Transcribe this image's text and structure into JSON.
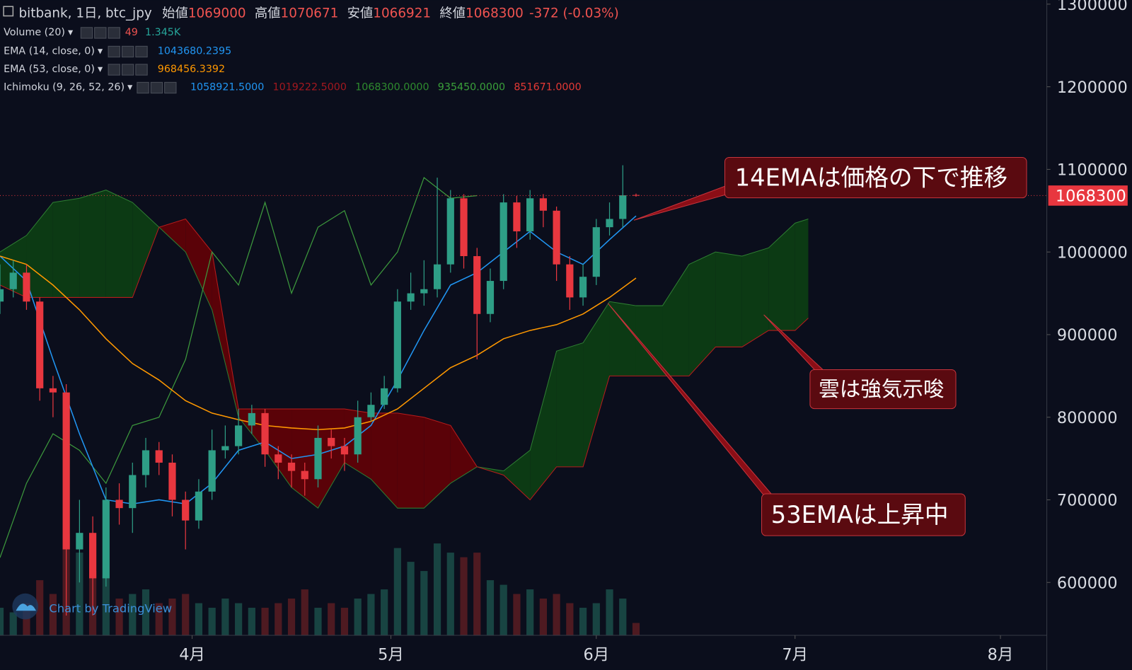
{
  "chart_data": {
    "type": "candlestick",
    "header": {
      "symbol": "bitbank, 1日, btc_jpy",
      "ohlc_labels": [
        "始値",
        "高値",
        "安値",
        "終値"
      ],
      "change": "-372 (-0.03%)",
      "volume_name": "Volume (20)",
      "volume_readings": [
        "49",
        "1.345K"
      ],
      "ichimoku_readings": [
        "1058921.5000",
        "1019222.5000",
        "1068300.0000",
        "935450.0000",
        "851671.0000"
      ]
    },
    "x": [
      0,
      2,
      4,
      6,
      8,
      10,
      12,
      14,
      16,
      18,
      20,
      22,
      24,
      26,
      28,
      30,
      32,
      34,
      36,
      38,
      40,
      42,
      44,
      46,
      48,
      50,
      52,
      54,
      56,
      58,
      60,
      62,
      64,
      66,
      68,
      70,
      72,
      74,
      76,
      78,
      80,
      82,
      84,
      86,
      88,
      90,
      92,
      94,
      96
    ],
    "open": [
      940000,
      955000,
      975000,
      940000,
      835000,
      830000,
      640000,
      660000,
      605000,
      700000,
      690000,
      730000,
      760000,
      745000,
      700000,
      675000,
      710000,
      760000,
      765000,
      790000,
      805000,
      755000,
      745000,
      735000,
      725000,
      775000,
      765000,
      755000,
      800000,
      815000,
      835000,
      940000,
      950000,
      955000,
      985000,
      1065000,
      995000,
      925000,
      965000,
      1060000,
      1025000,
      1065000,
      1050000,
      985000,
      945000,
      970000,
      1030000,
      1040000,
      1069000
    ],
    "high": [
      985000,
      990000,
      985000,
      945000,
      850000,
      840000,
      700000,
      680000,
      715000,
      720000,
      745000,
      775000,
      770000,
      755000,
      710000,
      725000,
      785000,
      790000,
      810000,
      815000,
      810000,
      765000,
      755000,
      745000,
      790000,
      785000,
      775000,
      820000,
      830000,
      850000,
      955000,
      975000,
      990000,
      1090000,
      1075000,
      1070000,
      1005000,
      980000,
      1070000,
      1068000,
      1075000,
      1070000,
      1055000,
      995000,
      985000,
      1040000,
      1060000,
      1105000,
      1070671
    ],
    "low": [
      925000,
      945000,
      930000,
      820000,
      800000,
      560000,
      600000,
      560000,
      595000,
      670000,
      660000,
      715000,
      730000,
      680000,
      640000,
      665000,
      700000,
      750000,
      755000,
      780000,
      740000,
      725000,
      715000,
      705000,
      715000,
      750000,
      735000,
      745000,
      795000,
      810000,
      830000,
      930000,
      935000,
      945000,
      975000,
      980000,
      870000,
      915000,
      955000,
      1005000,
      1015000,
      1030000,
      965000,
      930000,
      935000,
      960000,
      1020000,
      1030000,
      1066921
    ],
    "close": [
      955000,
      975000,
      940000,
      835000,
      830000,
      640000,
      660000,
      605000,
      700000,
      690000,
      730000,
      760000,
      745000,
      700000,
      675000,
      710000,
      760000,
      765000,
      790000,
      805000,
      755000,
      745000,
      735000,
      725000,
      775000,
      765000,
      755000,
      800000,
      815000,
      835000,
      940000,
      950000,
      955000,
      985000,
      1065000,
      995000,
      925000,
      965000,
      1060000,
      1025000,
      1065000,
      1050000,
      985000,
      945000,
      970000,
      1030000,
      1040000,
      1068672,
      1068300
    ],
    "volume": [
      3000,
      2500,
      3500,
      6000,
      4500,
      11000,
      9000,
      7000,
      6500,
      4000,
      4500,
      5000,
      3500,
      4000,
      4500,
      3500,
      3000,
      4000,
      3500,
      3000,
      3000,
      3500,
      4000,
      5000,
      3000,
      3500,
      3000,
      4000,
      4500,
      5000,
      9500,
      8000,
      7000,
      10000,
      9000,
      8500,
      9000,
      6000,
      5500,
      4500,
      5000,
      4000,
      4500,
      3500,
      3000,
      3500,
      5000,
      4000,
      1345
    ],
    "vlim": [
      0,
      11000
    ],
    "up_color": "#2e9e86",
    "down_color": "#e8373f",
    "series": [
      {
        "name": "EMA (14, close, 0)",
        "color": "#2196f3",
        "x": [
          0,
          4,
          8,
          12,
          16,
          20,
          24,
          28,
          32,
          36,
          40,
          44,
          48,
          52,
          56,
          60,
          64,
          68,
          72,
          76,
          80,
          84,
          88,
          92,
          96
        ],
        "values": [
          995000,
          965000,
          870000,
          780000,
          700000,
          695000,
          700000,
          695000,
          720000,
          760000,
          770000,
          750000,
          755000,
          765000,
          790000,
          845000,
          905000,
          960000,
          975000,
          1000000,
          1025000,
          1000000,
          985000,
          1015000,
          1043680.2395
        ]
      },
      {
        "name": "EMA (53, close, 0)",
        "color": "#ff9800",
        "x": [
          0,
          4,
          8,
          12,
          16,
          20,
          24,
          28,
          32,
          36,
          40,
          44,
          48,
          52,
          56,
          60,
          64,
          68,
          72,
          76,
          80,
          84,
          88,
          92,
          96
        ],
        "values": [
          995000,
          985000,
          960000,
          930000,
          895000,
          865000,
          845000,
          820000,
          805000,
          797000,
          790000,
          787000,
          785000,
          787000,
          795000,
          810000,
          835000,
          860000,
          875000,
          895000,
          905000,
          912000,
          925000,
          945000,
          968456.3392
        ]
      }
    ],
    "ichimoku": {
      "name": "Ichimoku (9, 26, 52, 26)",
      "x": [
        0,
        4,
        8,
        12,
        16,
        20,
        24,
        28,
        32,
        36,
        40,
        44,
        48,
        52,
        56,
        60,
        64,
        68,
        72,
        76,
        80,
        84,
        88,
        92,
        96,
        100,
        104,
        108,
        112,
        116,
        120,
        122
      ],
      "span_a": [
        1000000,
        1020000,
        1060000,
        1065000,
        1075000,
        1060000,
        1030000,
        1000000,
        930000,
        800000,
        760000,
        715000,
        690000,
        745000,
        725000,
        690000,
        690000,
        720000,
        740000,
        735000,
        760000,
        880000,
        890000,
        940000,
        935000,
        935000,
        985000,
        1000000,
        995000,
        1005000,
        1035000,
        1040000
      ],
      "span_b": [
        960000,
        945000,
        945000,
        945000,
        945000,
        945000,
        1030000,
        1040000,
        1000000,
        810000,
        810000,
        810000,
        810000,
        810000,
        805000,
        805000,
        800000,
        790000,
        740000,
        730000,
        700000,
        740000,
        740000,
        850000,
        850000,
        850000,
        850000,
        885000,
        885000,
        905000,
        905000,
        920000
      ],
      "up_fill": "#0c3a14",
      "down_fill": "#5a0208",
      "span_a_color": "#2e7d32",
      "span_b_color": "#b71c1c",
      "lagging_color": "#3d9a3d",
      "lagging_x": [
        0,
        4,
        8,
        12,
        16,
        20,
        24,
        28,
        32,
        36,
        40,
        44,
        48,
        52,
        56,
        60,
        64,
        68,
        72
      ],
      "lagging": [
        630000,
        720000,
        780000,
        760000,
        720000,
        790000,
        800000,
        870000,
        1000000,
        960000,
        1060000,
        950000,
        1030000,
        1050000,
        960000,
        1000000,
        1090000,
        1065000,
        1068300
      ]
    },
    "xlim": [
      0,
      158
    ],
    "xticks": [
      {
        "value": 29,
        "label": "4月"
      },
      {
        "value": 59,
        "label": "5月"
      },
      {
        "value": 90,
        "label": "6月"
      },
      {
        "value": 120,
        "label": "7月"
      },
      {
        "value": 151,
        "label": "8月"
      }
    ],
    "ylim": [
      536000,
      1305000
    ],
    "yticks": [
      600000,
      700000,
      800000,
      900000,
      1000000,
      1100000,
      1200000,
      1300000
    ],
    "annotations": [
      "14EMAは価格の下で推移",
      "雲は強気示唆",
      "53EMAは上昇中"
    ],
    "watermark": "Chart by TradingView"
  }
}
